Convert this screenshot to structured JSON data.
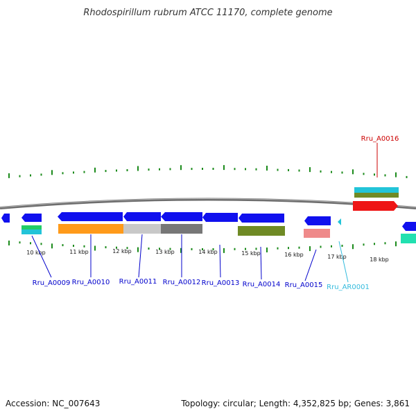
{
  "title": "Rhodospirillum rubrum ATCC 11170, complete genome",
  "footer": {
    "accession": "Accession: NC_007643",
    "summary": "Topology: circular; Length: 4,352,825 bp; Genes: 3,861"
  },
  "colors": {
    "backbone": "#808080",
    "tick": "#1a8a1a",
    "label_blue": "#0000cc",
    "label_red": "#cc0000",
    "label_cyan": "#33bbdd",
    "gene_blue": "#1010ee",
    "orange": "#ff9a1a",
    "light_gray": "#c8c8c8",
    "dark_gray": "#777777",
    "olive": "#6f8a25",
    "salmon": "#ef8a8a",
    "cyan": "#22c4d8",
    "red": "#ee1515",
    "teal": "#22e0b0"
  },
  "scale": [
    {
      "label": "10 kbp"
    },
    {
      "label": "11 kbp"
    },
    {
      "label": "12 kbp"
    },
    {
      "label": "13 kbp"
    },
    {
      "label": "14 kbp"
    },
    {
      "label": "15 kbp"
    },
    {
      "label": "16 kbp"
    },
    {
      "label": "17 kbp"
    },
    {
      "label": "18 kbp"
    }
  ],
  "gene_labels": [
    {
      "id": "Rru_A0009",
      "color": "label_blue"
    },
    {
      "id": "Rru_A0010",
      "color": "label_blue"
    },
    {
      "id": "Rru_A0011",
      "color": "label_blue"
    },
    {
      "id": "Rru_A0012",
      "color": "label_blue"
    },
    {
      "id": "Rru_A0013",
      "color": "label_blue"
    },
    {
      "id": "Rru_A0014",
      "color": "label_blue"
    },
    {
      "id": "Rru_A0015",
      "color": "label_blue"
    },
    {
      "id": "Rru_AR0001",
      "color": "label_cyan"
    },
    {
      "id": "Rru_A0016",
      "color": "label_red"
    }
  ]
}
